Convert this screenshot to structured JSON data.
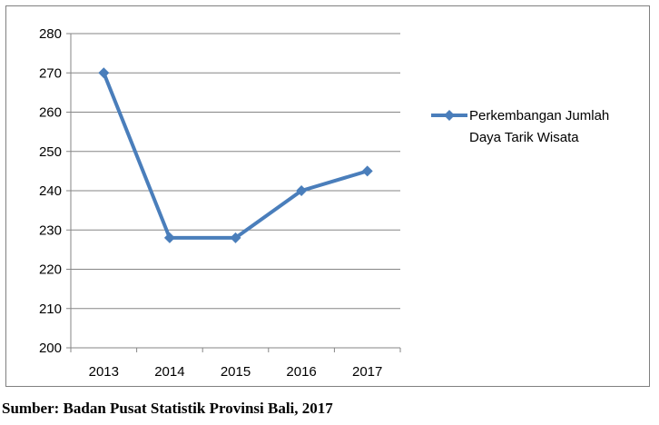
{
  "chart_data": {
    "type": "line",
    "categories": [
      "2013",
      "2014",
      "2015",
      "2016",
      "2017"
    ],
    "series": [
      {
        "name": "Perkembangan Jumlah Daya Tarik Wisata",
        "values": [
          270,
          228,
          228,
          240,
          245
        ]
      }
    ],
    "ylim": [
      200,
      280
    ],
    "yticks": [
      200,
      210,
      220,
      230,
      240,
      250,
      260,
      270,
      280
    ],
    "grid": true,
    "legend_position": "right",
    "line_color": "#4A7EBB",
    "marker": "diamond"
  },
  "legend": {
    "line1": "Perkembangan Jumlah",
    "line2": "Daya Tarik Wisata"
  },
  "source_note": "Sumber: Badan Pusat Statistik Provinsi Bali, 2017"
}
